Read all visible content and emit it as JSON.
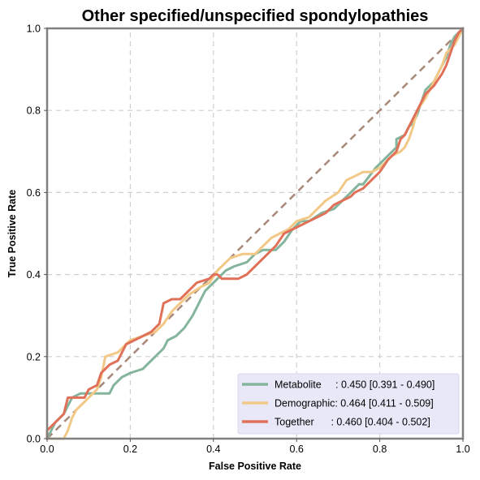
{
  "chart_data": {
    "type": "line",
    "title": "Other specified/unspecified spondylopathies",
    "xlabel": "False Positive Rate",
    "ylabel": "True Positive Rate",
    "xlim": [
      0,
      1
    ],
    "ylim": [
      0,
      1
    ],
    "xticks": [
      "0.0",
      "0.2",
      "0.4",
      "0.6",
      "0.8",
      "1.0"
    ],
    "yticks": [
      "0.0",
      "0.2",
      "0.4",
      "0.6",
      "0.8",
      "1.0"
    ],
    "grid": true,
    "legend_position": "bottom-right",
    "diagonal": {
      "color": "#a88878",
      "points": [
        [
          0,
          0
        ],
        [
          1,
          1
        ]
      ]
    },
    "series": [
      {
        "name": "Metabolite",
        "auc_text": "     : 0.450 [0.391 - 0.490]",
        "color": "#84b59c",
        "points": [
          [
            0,
            0
          ],
          [
            0.01,
            0.02
          ],
          [
            0.02,
            0.04
          ],
          [
            0.04,
            0.06
          ],
          [
            0.05,
            0.08
          ],
          [
            0.06,
            0.1
          ],
          [
            0.08,
            0.11
          ],
          [
            0.09,
            0.11
          ],
          [
            0.15,
            0.11
          ],
          [
            0.16,
            0.13
          ],
          [
            0.18,
            0.15
          ],
          [
            0.2,
            0.16
          ],
          [
            0.23,
            0.17
          ],
          [
            0.26,
            0.2
          ],
          [
            0.28,
            0.22
          ],
          [
            0.29,
            0.24
          ],
          [
            0.31,
            0.25
          ],
          [
            0.33,
            0.27
          ],
          [
            0.35,
            0.3
          ],
          [
            0.37,
            0.34
          ],
          [
            0.38,
            0.36
          ],
          [
            0.4,
            0.38
          ],
          [
            0.43,
            0.41
          ],
          [
            0.45,
            0.42
          ],
          [
            0.48,
            0.43
          ],
          [
            0.5,
            0.45
          ],
          [
            0.52,
            0.46
          ],
          [
            0.55,
            0.46
          ],
          [
            0.57,
            0.48
          ],
          [
            0.59,
            0.51
          ],
          [
            0.61,
            0.53
          ],
          [
            0.63,
            0.53
          ],
          [
            0.66,
            0.55
          ],
          [
            0.69,
            0.56
          ],
          [
            0.71,
            0.58
          ],
          [
            0.73,
            0.6
          ],
          [
            0.75,
            0.62
          ],
          [
            0.76,
            0.62
          ],
          [
            0.79,
            0.66
          ],
          [
            0.8,
            0.67
          ],
          [
            0.82,
            0.69
          ],
          [
            0.84,
            0.71
          ],
          [
            0.84,
            0.73
          ],
          [
            0.86,
            0.74
          ],
          [
            0.87,
            0.76
          ],
          [
            0.88,
            0.77
          ],
          [
            0.89,
            0.79
          ],
          [
            0.9,
            0.82
          ],
          [
            0.91,
            0.85
          ],
          [
            0.93,
            0.87
          ],
          [
            0.94,
            0.89
          ],
          [
            0.95,
            0.91
          ],
          [
            0.96,
            0.93
          ],
          [
            0.97,
            0.96
          ],
          [
            0.98,
            0.98
          ],
          [
            1,
            1
          ]
        ]
      },
      {
        "name": "Demographic",
        "auc_text": ": 0.464 [0.411 - 0.509]",
        "color": "#f2c886",
        "points": [
          [
            0,
            0
          ],
          [
            0.02,
            0
          ],
          [
            0.04,
            0
          ],
          [
            0.05,
            0.02
          ],
          [
            0.06,
            0.05
          ],
          [
            0.07,
            0.07
          ],
          [
            0.09,
            0.09
          ],
          [
            0.1,
            0.1
          ],
          [
            0.12,
            0.12
          ],
          [
            0.13,
            0.15
          ],
          [
            0.14,
            0.2
          ],
          [
            0.17,
            0.21
          ],
          [
            0.2,
            0.24
          ],
          [
            0.23,
            0.25
          ],
          [
            0.26,
            0.26
          ],
          [
            0.28,
            0.28
          ],
          [
            0.3,
            0.31
          ],
          [
            0.32,
            0.33
          ],
          [
            0.34,
            0.35
          ],
          [
            0.37,
            0.37
          ],
          [
            0.39,
            0.38
          ],
          [
            0.41,
            0.41
          ],
          [
            0.44,
            0.44
          ],
          [
            0.47,
            0.45
          ],
          [
            0.5,
            0.45
          ],
          [
            0.52,
            0.47
          ],
          [
            0.54,
            0.49
          ],
          [
            0.56,
            0.5
          ],
          [
            0.58,
            0.51
          ],
          [
            0.6,
            0.53
          ],
          [
            0.63,
            0.54
          ],
          [
            0.65,
            0.56
          ],
          [
            0.67,
            0.58
          ],
          [
            0.7,
            0.6
          ],
          [
            0.72,
            0.63
          ],
          [
            0.74,
            0.64
          ],
          [
            0.76,
            0.65
          ],
          [
            0.78,
            0.65
          ],
          [
            0.8,
            0.66
          ],
          [
            0.81,
            0.67
          ],
          [
            0.82,
            0.68
          ],
          [
            0.83,
            0.69
          ],
          [
            0.85,
            0.7
          ],
          [
            0.86,
            0.71
          ],
          [
            0.87,
            0.73
          ],
          [
            0.88,
            0.76
          ],
          [
            0.89,
            0.8
          ],
          [
            0.91,
            0.83
          ],
          [
            0.92,
            0.85
          ],
          [
            0.93,
            0.87
          ],
          [
            0.94,
            0.89
          ],
          [
            0.95,
            0.91
          ],
          [
            0.96,
            0.94
          ],
          [
            0.97,
            0.95
          ],
          [
            0.98,
            0.96
          ],
          [
            0.99,
            0.98
          ],
          [
            1,
            1
          ]
        ]
      },
      {
        "name": "Together",
        "auc_text": "      : 0.460 [0.404 - 0.502]",
        "color": "#e07158",
        "points": [
          [
            0,
            0
          ],
          [
            0,
            0.02
          ],
          [
            0.01,
            0.03
          ],
          [
            0.02,
            0.04
          ],
          [
            0.03,
            0.05
          ],
          [
            0.04,
            0.06
          ],
          [
            0.05,
            0.1
          ],
          [
            0.06,
            0.1
          ],
          [
            0.09,
            0.1
          ],
          [
            0.1,
            0.12
          ],
          [
            0.12,
            0.13
          ],
          [
            0.13,
            0.16
          ],
          [
            0.15,
            0.18
          ],
          [
            0.17,
            0.19
          ],
          [
            0.18,
            0.21
          ],
          [
            0.19,
            0.23
          ],
          [
            0.21,
            0.24
          ],
          [
            0.23,
            0.25
          ],
          [
            0.25,
            0.26
          ],
          [
            0.27,
            0.28
          ],
          [
            0.28,
            0.33
          ],
          [
            0.3,
            0.34
          ],
          [
            0.32,
            0.34
          ],
          [
            0.34,
            0.36
          ],
          [
            0.36,
            0.38
          ],
          [
            0.39,
            0.39
          ],
          [
            0.4,
            0.4
          ],
          [
            0.41,
            0.4
          ],
          [
            0.42,
            0.39
          ],
          [
            0.44,
            0.39
          ],
          [
            0.46,
            0.39
          ],
          [
            0.48,
            0.4
          ],
          [
            0.5,
            0.42
          ],
          [
            0.51,
            0.43
          ],
          [
            0.53,
            0.45
          ],
          [
            0.55,
            0.47
          ],
          [
            0.57,
            0.5
          ],
          [
            0.59,
            0.51
          ],
          [
            0.61,
            0.52
          ],
          [
            0.63,
            0.53
          ],
          [
            0.65,
            0.54
          ],
          [
            0.67,
            0.55
          ],
          [
            0.69,
            0.57
          ],
          [
            0.71,
            0.58
          ],
          [
            0.73,
            0.59
          ],
          [
            0.74,
            0.6
          ],
          [
            0.76,
            0.61
          ],
          [
            0.78,
            0.63
          ],
          [
            0.8,
            0.65
          ],
          [
            0.82,
            0.68
          ],
          [
            0.84,
            0.7
          ],
          [
            0.85,
            0.73
          ],
          [
            0.86,
            0.74
          ],
          [
            0.87,
            0.76
          ],
          [
            0.88,
            0.78
          ],
          [
            0.9,
            0.82
          ],
          [
            0.91,
            0.84
          ],
          [
            0.93,
            0.86
          ],
          [
            0.95,
            0.89
          ],
          [
            0.96,
            0.91
          ],
          [
            0.97,
            0.94
          ],
          [
            0.98,
            0.97
          ],
          [
            0.99,
            0.99
          ],
          [
            1,
            1
          ]
        ]
      }
    ]
  }
}
